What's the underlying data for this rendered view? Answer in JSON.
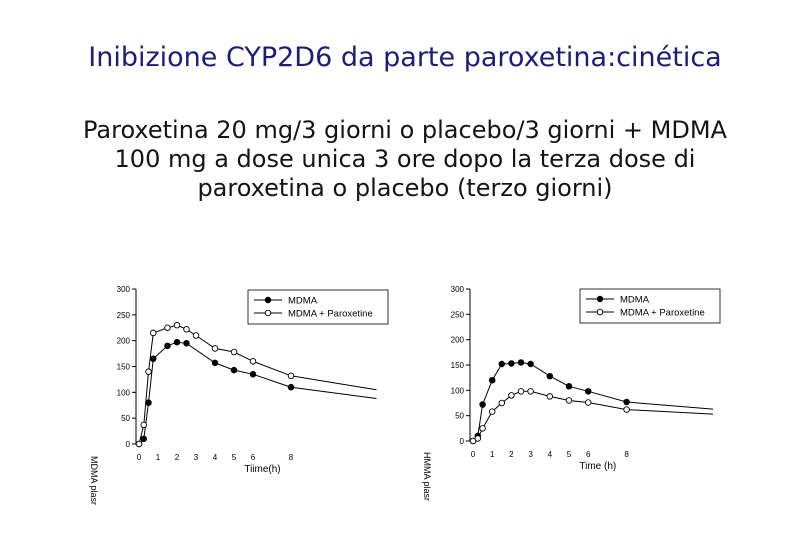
{
  "slide": {
    "title": "Inibizione CYP2D6 da parte paroxetina:cinética",
    "subtitle_lines": [
      "Paroxetina 20 mg/3 giorni o placebo/3 giorni + MDMA",
      "100 mg a dose unica 3 ore dopo la terza dose di",
      "paroxetina o placebo (terzo giorni)"
    ]
  },
  "chart_data": [
    {
      "type": "line",
      "xlabel": "Tiime(h)",
      "ylabel": "MDMA plasr",
      "xticks": [
        0,
        1,
        2,
        3,
        4,
        5,
        6,
        8
      ],
      "yticks": [
        0,
        50,
        100,
        150,
        200,
        250,
        300
      ],
      "xlim": [
        -0.3,
        12.5
      ],
      "ylim": [
        0,
        300
      ],
      "legend_position": "top-right",
      "series": [
        {
          "name": "MDMA",
          "marker": "filled",
          "x": [
            0,
            0.25,
            0.5,
            0.75,
            1.5,
            2,
            2.5,
            4,
            5,
            6,
            8,
            12.5
          ],
          "y": [
            0,
            10,
            80,
            165,
            190,
            197,
            195,
            157,
            143,
            135,
            110,
            88
          ],
          "markers": [
            1,
            1,
            1,
            1,
            1,
            1,
            1,
            1,
            1,
            1,
            1,
            0
          ]
        },
        {
          "name": "MDMA + Paroxetine",
          "marker": "open",
          "x": [
            0,
            0.25,
            0.5,
            0.75,
            1.5,
            2,
            2.5,
            3,
            4,
            5,
            6,
            8,
            12.5
          ],
          "y": [
            0,
            37,
            140,
            215,
            225,
            230,
            222,
            210,
            185,
            178,
            160,
            132,
            105
          ],
          "markers": [
            1,
            1,
            1,
            1,
            1,
            1,
            1,
            1,
            1,
            1,
            1,
            1,
            0
          ]
        }
      ]
    },
    {
      "type": "line",
      "xlabel": "Time (h)",
      "ylabel": "HMMA plasr",
      "xticks": [
        0,
        1,
        2,
        3,
        4,
        5,
        6,
        8
      ],
      "yticks": [
        0,
        50,
        100,
        150,
        200,
        250,
        300
      ],
      "xlim": [
        -0.3,
        12.5
      ],
      "ylim": [
        0,
        300
      ],
      "legend_position": "top-right",
      "series": [
        {
          "name": "MDMA",
          "marker": "filled",
          "x": [
            0,
            0.25,
            0.5,
            1,
            1.5,
            2,
            2.5,
            3,
            4,
            5,
            6,
            8,
            12.5
          ],
          "y": [
            0,
            10,
            72,
            120,
            152,
            153,
            155,
            152,
            128,
            108,
            98,
            77,
            63
          ],
          "markers": [
            1,
            1,
            1,
            1,
            1,
            1,
            1,
            1,
            1,
            1,
            1,
            1,
            0
          ]
        },
        {
          "name": "MDMA + Paroxetine",
          "marker": "open",
          "x": [
            0,
            0.25,
            0.5,
            1,
            1.5,
            2,
            2.5,
            3,
            4,
            5,
            6,
            8,
            12.5
          ],
          "y": [
            0,
            5,
            25,
            58,
            75,
            90,
            98,
            98,
            88,
            80,
            76,
            62,
            53
          ],
          "markers": [
            1,
            1,
            1,
            1,
            1,
            1,
            1,
            1,
            1,
            1,
            1,
            1,
            0
          ]
        }
      ]
    }
  ]
}
